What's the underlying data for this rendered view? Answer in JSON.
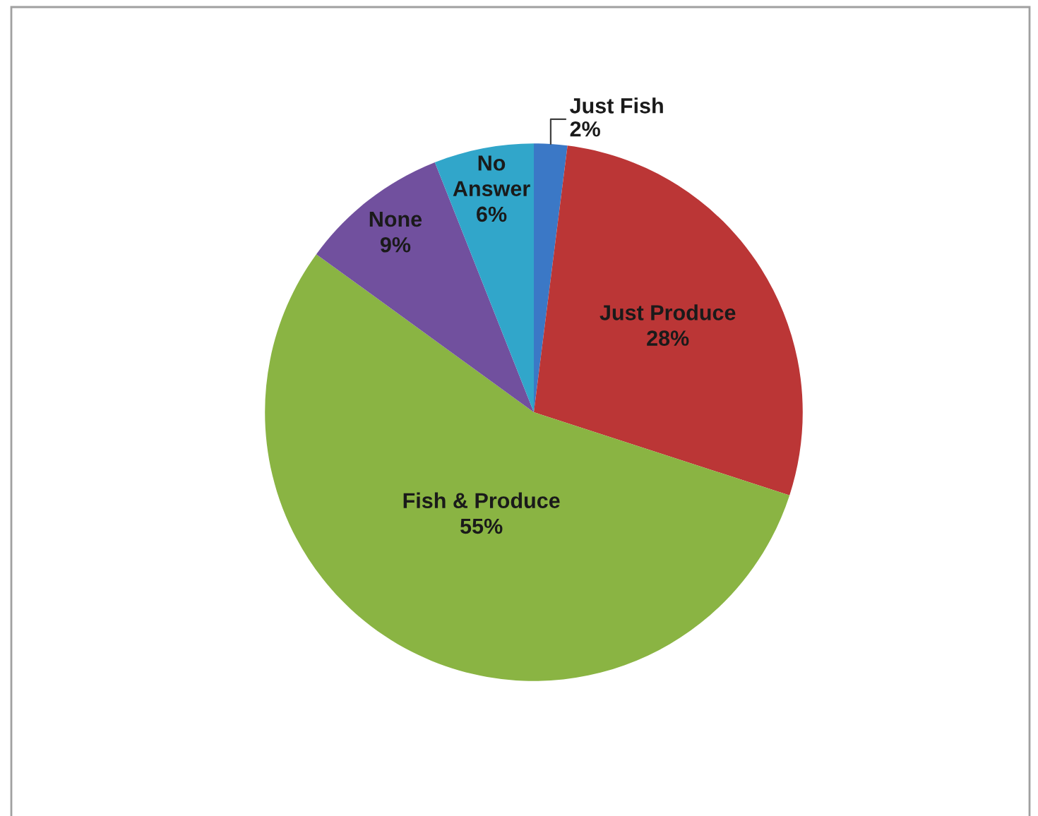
{
  "chart_data": {
    "type": "pie",
    "categories": [
      "Just Fish",
      "Just Produce",
      "Fish & Produce",
      "None",
      "No Answer"
    ],
    "values": [
      2,
      28,
      55,
      9,
      6
    ],
    "value_labels": [
      "2%",
      "28%",
      "55%",
      "9%",
      "6%"
    ],
    "colors": [
      "#3b78c6",
      "#bb3636",
      "#8ab443",
      "#71509e",
      "#31a6ca"
    ],
    "legend": false
  }
}
